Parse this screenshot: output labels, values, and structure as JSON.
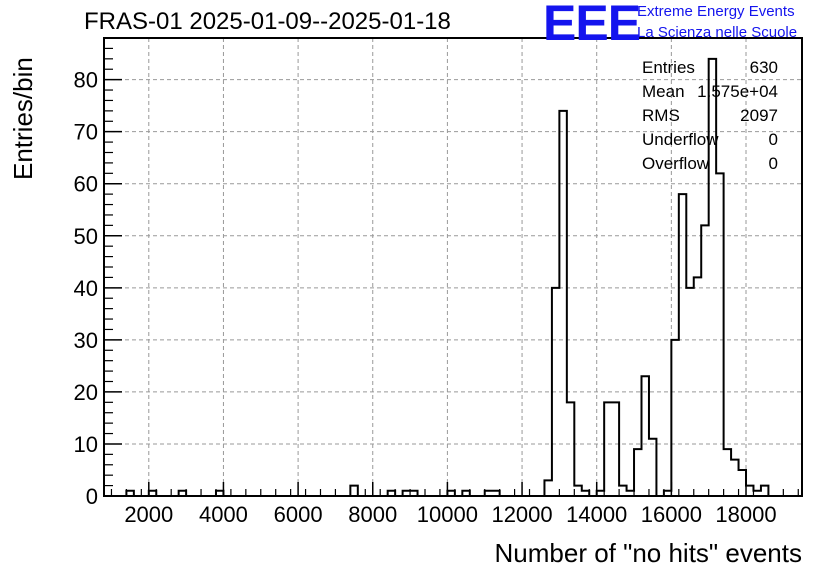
{
  "header": {
    "title": "FRAS-01 2025-01-09--2025-01-18",
    "logo_mark": "EEE",
    "logo_line1": "Extreme Energy Events",
    "logo_line2": "La Scienza nelle Scuole",
    "logo_color": "#1414ee"
  },
  "stats_box": {
    "entries_label": "Entries",
    "entries_value": "630",
    "mean_label": "Mean",
    "mean_value": "1.575e+04",
    "rms_label": "RMS",
    "rms_value": "2097",
    "underflow_label": "Underflow",
    "underflow_value": "0",
    "overflow_label": "Overflow",
    "overflow_value": "0"
  },
  "chart_data": {
    "type": "histogram",
    "title": "FRAS-01 2025-01-09--2025-01-18",
    "xlabel": "Number of \"no hits\" events",
    "ylabel": "Entries/bin",
    "xlim": [
      800,
      19500
    ],
    "ylim": [
      0,
      88
    ],
    "x_ticks": [
      2000,
      4000,
      6000,
      8000,
      10000,
      12000,
      14000,
      16000,
      18000
    ],
    "y_ticks": [
      0,
      10,
      20,
      30,
      40,
      50,
      60,
      70,
      80
    ],
    "grid": true,
    "bin_width": 200,
    "bins": [
      {
        "x": 1500,
        "y": 1
      },
      {
        "x": 2100,
        "y": 1
      },
      {
        "x": 2900,
        "y": 1
      },
      {
        "x": 3900,
        "y": 1
      },
      {
        "x": 7500,
        "y": 2
      },
      {
        "x": 8500,
        "y": 1
      },
      {
        "x": 8900,
        "y": 1
      },
      {
        "x": 9100,
        "y": 1
      },
      {
        "x": 10100,
        "y": 1
      },
      {
        "x": 10500,
        "y": 1
      },
      {
        "x": 11100,
        "y": 1
      },
      {
        "x": 11300,
        "y": 1
      },
      {
        "x": 12700,
        "y": 3
      },
      {
        "x": 12900,
        "y": 40
      },
      {
        "x": 13100,
        "y": 74
      },
      {
        "x": 13300,
        "y": 18
      },
      {
        "x": 13500,
        "y": 2
      },
      {
        "x": 13700,
        "y": 1
      },
      {
        "x": 14100,
        "y": 1
      },
      {
        "x": 14300,
        "y": 18
      },
      {
        "x": 14500,
        "y": 18
      },
      {
        "x": 14700,
        "y": 2
      },
      {
        "x": 14900,
        "y": 1
      },
      {
        "x": 15100,
        "y": 9
      },
      {
        "x": 15300,
        "y": 23
      },
      {
        "x": 15500,
        "y": 11
      },
      {
        "x": 15900,
        "y": 1
      },
      {
        "x": 16100,
        "y": 30
      },
      {
        "x": 16300,
        "y": 58
      },
      {
        "x": 16500,
        "y": 40
      },
      {
        "x": 16700,
        "y": 42
      },
      {
        "x": 16900,
        "y": 52
      },
      {
        "x": 17100,
        "y": 84
      },
      {
        "x": 17300,
        "y": 62
      },
      {
        "x": 17500,
        "y": 9
      },
      {
        "x": 17700,
        "y": 7
      },
      {
        "x": 17900,
        "y": 5
      },
      {
        "x": 18100,
        "y": 2
      },
      {
        "x": 18300,
        "y": 1
      },
      {
        "x": 18500,
        "y": 2
      }
    ]
  }
}
